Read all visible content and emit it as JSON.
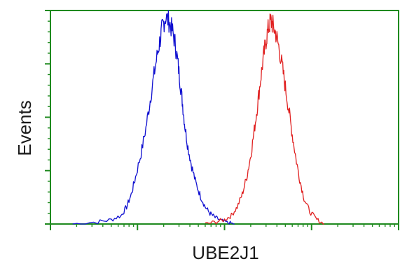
{
  "chart_data": {
    "type": "line",
    "xlabel": "UBE2J1",
    "ylabel": "Events",
    "x_scale": "log",
    "xlim": [
      1,
      10000
    ],
    "ylim": [
      0,
      100
    ],
    "grid": false,
    "legend": "none",
    "axis_color": "#1f8a1f",
    "series": [
      {
        "color": "#1010d0",
        "x": [
          1.8,
          3.5,
          5,
          6.5,
          7.5,
          8.5,
          9.5,
          11,
          12.5,
          14,
          15.5,
          17,
          18.5,
          19.5,
          21,
          23,
          25,
          27,
          29,
          31,
          33,
          35,
          38,
          42,
          47,
          53,
          60,
          68,
          78,
          92,
          110,
          130
        ],
        "y": [
          0,
          1,
          2,
          4,
          8,
          14,
          22,
          33,
          45,
          58,
          70,
          80,
          88,
          93,
          97,
          95,
          91,
          85,
          76,
          66,
          56,
          46,
          36,
          27,
          19,
          13,
          8,
          5,
          3,
          1.5,
          0.5,
          0
        ]
      },
      {
        "color": "#e02020",
        "x": [
          60,
          80,
          100,
          120,
          140,
          160,
          180,
          200,
          220,
          240,
          260,
          280,
          300,
          320,
          340,
          360,
          390,
          420,
          460,
          500,
          550,
          600,
          660,
          730,
          820,
          950,
          1150,
          1400
        ],
        "y": [
          0,
          1,
          2,
          4,
          8,
          14,
          22,
          32,
          44,
          56,
          68,
          78,
          86,
          92,
          95,
          93,
          89,
          83,
          74,
          64,
          53,
          42,
          31,
          21,
          12,
          6,
          2,
          0
        ]
      }
    ]
  }
}
